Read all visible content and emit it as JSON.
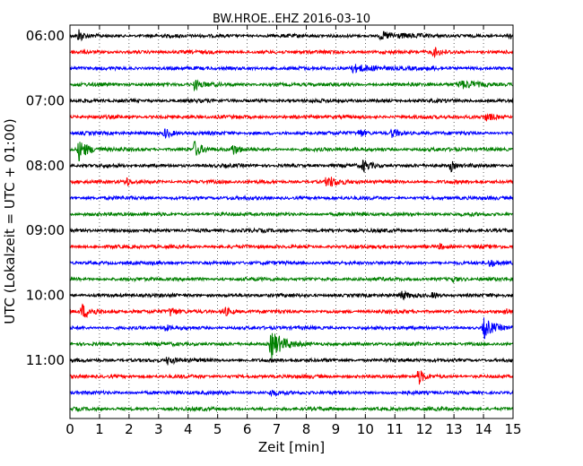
{
  "chart_data": {
    "type": "line",
    "title": "BW.HROE..EHZ 2016-03-10",
    "xlabel": "Zeit  [min]",
    "ylabel": "UTC (Lokalzeit = UTC + 01:00)",
    "xlim": [
      0,
      15
    ],
    "xticks": [
      "0",
      "1",
      "2",
      "3",
      "4",
      "5",
      "6",
      "7",
      "8",
      "9",
      "10",
      "11",
      "12",
      "13",
      "14",
      "15"
    ],
    "yticks": [
      "06:00",
      "07:00",
      "08:00",
      "09:00",
      "10:00",
      "11:00"
    ],
    "grid": true,
    "trace_minutes": 15,
    "colors": [
      "#000000",
      "#ff0000",
      "#0000ff",
      "#008000"
    ],
    "traces": [
      {
        "start": "06:00",
        "color": "#000000",
        "events": [
          [
            0.3,
            1.0,
            0.3
          ],
          [
            10.5,
            0.5,
            1.5
          ],
          [
            14.9,
            0.5,
            0.4
          ]
        ]
      },
      {
        "start": "06:15",
        "color": "#ff0000",
        "events": [
          [
            12.3,
            0.7,
            0.4
          ]
        ]
      },
      {
        "start": "06:30",
        "color": "#0000ff",
        "events": [
          [
            9.5,
            0.5,
            2.0
          ]
        ]
      },
      {
        "start": "06:45",
        "color": "#008000",
        "events": [
          [
            4.2,
            0.7,
            0.5
          ],
          [
            13.2,
            0.5,
            1.5
          ]
        ]
      },
      {
        "start": "07:00",
        "color": "#000000",
        "events": []
      },
      {
        "start": "07:15",
        "color": "#ff0000",
        "events": [
          [
            14.1,
            0.5,
            0.6
          ]
        ]
      },
      {
        "start": "07:30",
        "color": "#0000ff",
        "events": [
          [
            3.2,
            0.7,
            0.5
          ],
          [
            9.8,
            0.6,
            0.4
          ],
          [
            10.9,
            0.6,
            0.5
          ]
        ]
      },
      {
        "start": "07:45",
        "color": "#008000",
        "events": [
          [
            0.3,
            1.5,
            0.6
          ],
          [
            4.2,
            1.2,
            0.5
          ],
          [
            5.5,
            0.8,
            0.4
          ]
        ]
      },
      {
        "start": "08:00",
        "color": "#000000",
        "events": [
          [
            9.9,
            0.8,
            0.6
          ],
          [
            12.9,
            0.8,
            0.2
          ]
        ]
      },
      {
        "start": "08:15",
        "color": "#ff0000",
        "events": [
          [
            1.9,
            0.8,
            0.2
          ],
          [
            8.7,
            0.8,
            0.7
          ]
        ]
      },
      {
        "start": "08:30",
        "color": "#0000ff",
        "events": []
      },
      {
        "start": "08:45",
        "color": "#008000",
        "events": []
      },
      {
        "start": "09:00",
        "color": "#000000",
        "events": []
      },
      {
        "start": "09:15",
        "color": "#ff0000",
        "events": [
          [
            12.5,
            0.4,
            0.4
          ]
        ]
      },
      {
        "start": "09:30",
        "color": "#0000ff",
        "events": [
          [
            14.2,
            0.6,
            0.4
          ]
        ]
      },
      {
        "start": "09:45",
        "color": "#008000",
        "events": [
          [
            12.9,
            0.5,
            0.4
          ]
        ]
      },
      {
        "start": "10:00",
        "color": "#000000",
        "events": [
          [
            11.2,
            0.7,
            0.4
          ],
          [
            12.3,
            0.5,
            0.3
          ]
        ]
      },
      {
        "start": "10:15",
        "color": "#ff0000",
        "events": [
          [
            0.4,
            1.0,
            0.7
          ],
          [
            3.4,
            0.6,
            0.5
          ],
          [
            5.2,
            0.7,
            0.5
          ],
          [
            14.7,
            0.4,
            0.3
          ]
        ]
      },
      {
        "start": "10:30",
        "color": "#0000ff",
        "events": [
          [
            3.2,
            0.5,
            0.3
          ],
          [
            14.0,
            1.5,
            0.6
          ]
        ]
      },
      {
        "start": "10:45",
        "color": "#008000",
        "events": [
          [
            6.8,
            2.0,
            0.8
          ]
        ]
      },
      {
        "start": "11:00",
        "color": "#000000",
        "events": [
          [
            3.3,
            0.6,
            0.5
          ]
        ]
      },
      {
        "start": "11:15",
        "color": "#ff0000",
        "events": [
          [
            11.8,
            1.2,
            0.3
          ]
        ]
      },
      {
        "start": "11:30",
        "color": "#0000ff",
        "events": [
          [
            6.8,
            0.4,
            0.4
          ]
        ]
      },
      {
        "start": "11:45",
        "color": "#008000",
        "events": []
      }
    ]
  }
}
